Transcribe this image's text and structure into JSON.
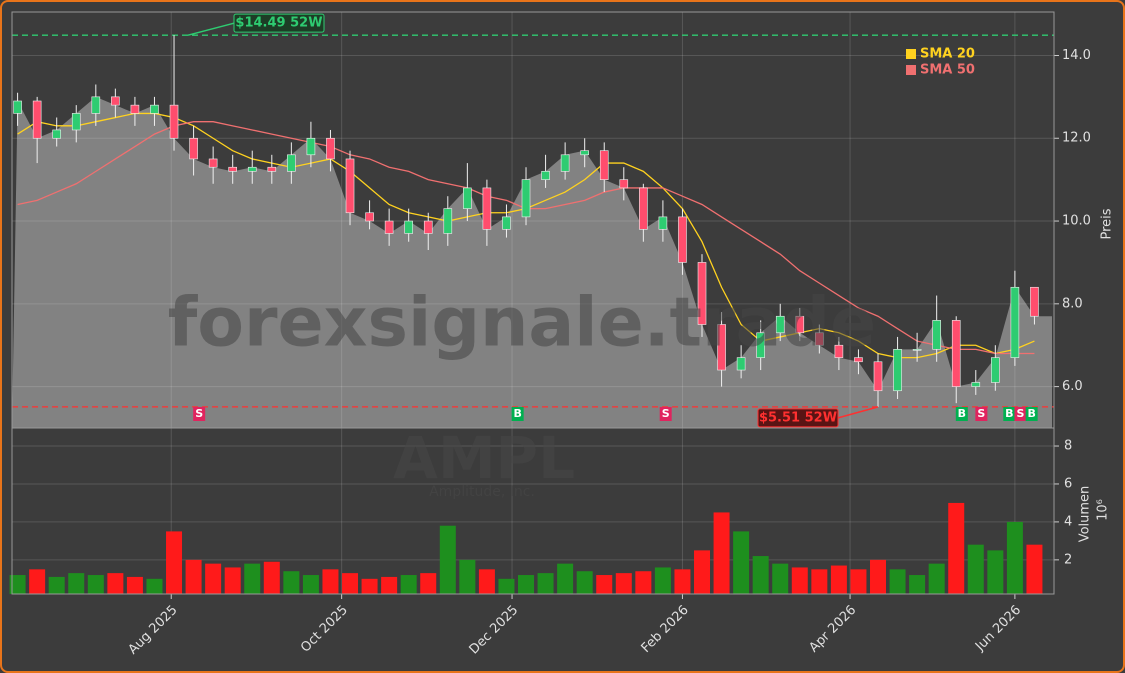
{
  "chart_data": [
    {
      "type": "candlestick",
      "ylabel": "Preis",
      "x": [
        2,
        9,
        16,
        23,
        30,
        37,
        44,
        51,
        58,
        65,
        72,
        79,
        86,
        93,
        100,
        107,
        114,
        121,
        128,
        135,
        142,
        149,
        156,
        163,
        170,
        177,
        184,
        191,
        198,
        205,
        212,
        219,
        226,
        233,
        240,
        247,
        254,
        261,
        268,
        275,
        282,
        289,
        296,
        303,
        310,
        317,
        324,
        331,
        338,
        345,
        352,
        359,
        366
      ],
      "open": [
        12.6,
        12.9,
        12.0,
        12.2,
        12.6,
        13.0,
        12.8,
        12.6,
        12.8,
        12.0,
        11.5,
        11.3,
        11.2,
        11.3,
        11.2,
        11.6,
        12.0,
        11.5,
        10.2,
        10.0,
        9.7,
        10.0,
        9.7,
        10.3,
        10.8,
        9.8,
        10.1,
        11.0,
        11.2,
        11.6,
        11.7,
        11.0,
        10.8,
        9.8,
        10.1,
        9.0,
        7.5,
        6.4,
        6.7,
        7.3,
        7.7,
        7.3,
        7.0,
        6.7,
        6.6,
        5.9,
        6.9,
        6.9,
        7.6,
        6.0,
        6.1,
        6.7,
        8.4
      ],
      "high": [
        13.1,
        13.0,
        12.5,
        12.8,
        13.3,
        13.2,
        13.0,
        13.0,
        14.49,
        12.3,
        11.8,
        11.6,
        11.7,
        11.6,
        11.9,
        12.4,
        12.2,
        11.7,
        10.5,
        10.3,
        10.3,
        10.2,
        10.6,
        11.4,
        11.0,
        10.4,
        11.3,
        11.6,
        11.9,
        12.0,
        11.9,
        11.3,
        10.9,
        10.5,
        10.3,
        9.2,
        7.8,
        7.0,
        7.6,
        8.0,
        7.9,
        7.5,
        7.2,
        6.9,
        6.8,
        7.2,
        7.3,
        8.2,
        7.7,
        6.4,
        7.0,
        8.8,
        8.4
      ],
      "low": [
        12.3,
        11.4,
        11.8,
        11.9,
        12.3,
        12.5,
        12.3,
        12.3,
        11.7,
        11.1,
        10.9,
        10.9,
        10.9,
        10.9,
        10.9,
        11.3,
        11.2,
        9.9,
        9.8,
        9.4,
        9.5,
        9.3,
        9.4,
        10.0,
        9.4,
        9.6,
        9.9,
        10.8,
        11.0,
        11.3,
        10.7,
        10.5,
        9.5,
        9.5,
        8.7,
        7.2,
        6.0,
        6.2,
        6.4,
        7.1,
        7.1,
        6.8,
        6.4,
        6.3,
        5.51,
        5.7,
        6.6,
        6.6,
        5.6,
        5.8,
        5.9,
        6.5,
        7.5
      ],
      "close": [
        12.9,
        12.0,
        12.2,
        12.6,
        13.0,
        12.8,
        12.6,
        12.8,
        12.0,
        11.5,
        11.3,
        11.2,
        11.3,
        11.2,
        11.6,
        12.0,
        11.5,
        10.2,
        10.0,
        9.7,
        10.0,
        9.7,
        10.3,
        10.8,
        9.8,
        10.1,
        11.0,
        11.2,
        11.6,
        11.7,
        11.0,
        10.8,
        9.8,
        10.1,
        9.0,
        7.5,
        6.4,
        6.7,
        7.3,
        7.7,
        7.3,
        7.0,
        6.7,
        6.6,
        5.9,
        6.9,
        6.9,
        7.6,
        6.0,
        6.1,
        6.7,
        8.4,
        7.7
      ],
      "up_color": "#2ecc71",
      "down_color": "#ff4d6d",
      "area_color": "#8a8a8a",
      "series": [
        {
          "name": "SMA 20",
          "color": "#ffd21f",
          "values": [
            12.1,
            12.4,
            12.3,
            12.3,
            12.4,
            12.5,
            12.6,
            12.6,
            12.5,
            12.3,
            12.0,
            11.7,
            11.5,
            11.4,
            11.3,
            11.4,
            11.5,
            11.2,
            10.8,
            10.4,
            10.2,
            10.1,
            10.0,
            10.1,
            10.2,
            10.2,
            10.3,
            10.5,
            10.7,
            11.0,
            11.4,
            11.4,
            11.2,
            10.8,
            10.3,
            9.5,
            8.4,
            7.5,
            7.1,
            7.2,
            7.3,
            7.4,
            7.3,
            7.1,
            6.8,
            6.7,
            6.7,
            6.8,
            7.0,
            7.0,
            6.8,
            6.9,
            7.1
          ]
        },
        {
          "name": "SMA 50",
          "color": "#f07070",
          "values": [
            10.4,
            10.5,
            10.7,
            10.9,
            11.2,
            11.5,
            11.8,
            12.1,
            12.3,
            12.4,
            12.4,
            12.3,
            12.2,
            12.1,
            12.0,
            11.9,
            11.8,
            11.6,
            11.5,
            11.3,
            11.2,
            11.0,
            10.9,
            10.8,
            10.6,
            10.5,
            10.3,
            10.3,
            10.4,
            10.5,
            10.7,
            10.8,
            10.8,
            10.8,
            10.6,
            10.4,
            10.1,
            9.8,
            9.5,
            9.2,
            8.8,
            8.5,
            8.2,
            7.9,
            7.7,
            7.4,
            7.1,
            7.0,
            6.9,
            6.9,
            6.8,
            6.8,
            6.8
          ]
        }
      ],
      "reference_lines": [
        {
          "value": 14.49,
          "label": "$14.49 52W",
          "x": 63,
          "color": "#2ecc71"
        },
        {
          "value": 5.51,
          "label": "$5.51 52W",
          "x": 310,
          "color": "#ff3030"
        }
      ],
      "signals": [
        {
          "x": 67,
          "label": "S",
          "color": "#e0245e"
        },
        {
          "x": 181,
          "label": "B",
          "color": "#00b050"
        },
        {
          "x": 234,
          "label": "S",
          "color": "#e0245e"
        },
        {
          "x": 340,
          "label": "B",
          "color": "#00b050"
        },
        {
          "x": 347,
          "label": "S",
          "color": "#e0245e"
        },
        {
          "x": 357,
          "label": "B",
          "color": "#00b050"
        },
        {
          "x": 361,
          "label": "S",
          "color": "#e0245e"
        },
        {
          "x": 365,
          "label": "B",
          "color": "#00b050"
        }
      ],
      "watermark": "forexsignale.trade",
      "xlim": [
        0,
        373
      ],
      "ylim": [
        5.0,
        15.05
      ],
      "yticks": [
        {
          "value": 6,
          "label": "6.0"
        },
        {
          "value": 8,
          "label": "8.0"
        },
        {
          "value": 10,
          "label": "10.0"
        },
        {
          "value": 12,
          "label": "12.0"
        },
        {
          "value": 14,
          "label": "14.0"
        }
      ],
      "grid": true,
      "legend": "upper right"
    },
    {
      "type": "bar",
      "ylabel": "Volumen",
      "offset_label": "10⁶",
      "ticker": "AMPL",
      "company": "Amplitude, Inc.",
      "x": [
        2,
        9,
        16,
        23,
        30,
        37,
        44,
        51,
        58,
        65,
        72,
        79,
        86,
        93,
        100,
        107,
        114,
        121,
        128,
        135,
        142,
        149,
        156,
        163,
        170,
        177,
        184,
        191,
        198,
        205,
        212,
        219,
        226,
        233,
        240,
        247,
        254,
        261,
        268,
        275,
        282,
        289,
        296,
        303,
        310,
        317,
        324,
        331,
        338,
        345,
        352,
        359,
        366
      ],
      "values": [
        1.2,
        1.5,
        1.1,
        1.3,
        1.2,
        1.3,
        1.1,
        1.0,
        3.5,
        2.0,
        1.8,
        1.6,
        1.8,
        1.9,
        1.4,
        1.2,
        1.5,
        1.3,
        1.0,
        1.1,
        1.2,
        1.3,
        3.8,
        2.0,
        1.5,
        1.0,
        1.2,
        1.3,
        1.8,
        1.4,
        1.2,
        1.3,
        1.4,
        1.6,
        1.5,
        2.5,
        4.5,
        3.5,
        2.2,
        1.8,
        1.6,
        1.5,
        1.7,
        1.5,
        2.0,
        1.5,
        1.2,
        1.8,
        5.0,
        2.8,
        2.5,
        4.0,
        2.8
      ],
      "up_color": "#1e8f1e",
      "down_color": "#ff1a1a",
      "xlim": [
        0,
        373
      ],
      "ylim": [
        0.2,
        8.95
      ],
      "xticks": [
        {
          "value": 57,
          "label": "Aug 2025"
        },
        {
          "value": 118,
          "label": "Oct 2025"
        },
        {
          "value": 179,
          "label": "Dec 2025"
        },
        {
          "value": 240,
          "label": "Feb 2026"
        },
        {
          "value": 300,
          "label": "Apr 2026"
        },
        {
          "value": 359,
          "label": "Jun 2026"
        }
      ],
      "yticks": [
        2,
        4,
        6,
        8
      ],
      "grid": true
    }
  ]
}
